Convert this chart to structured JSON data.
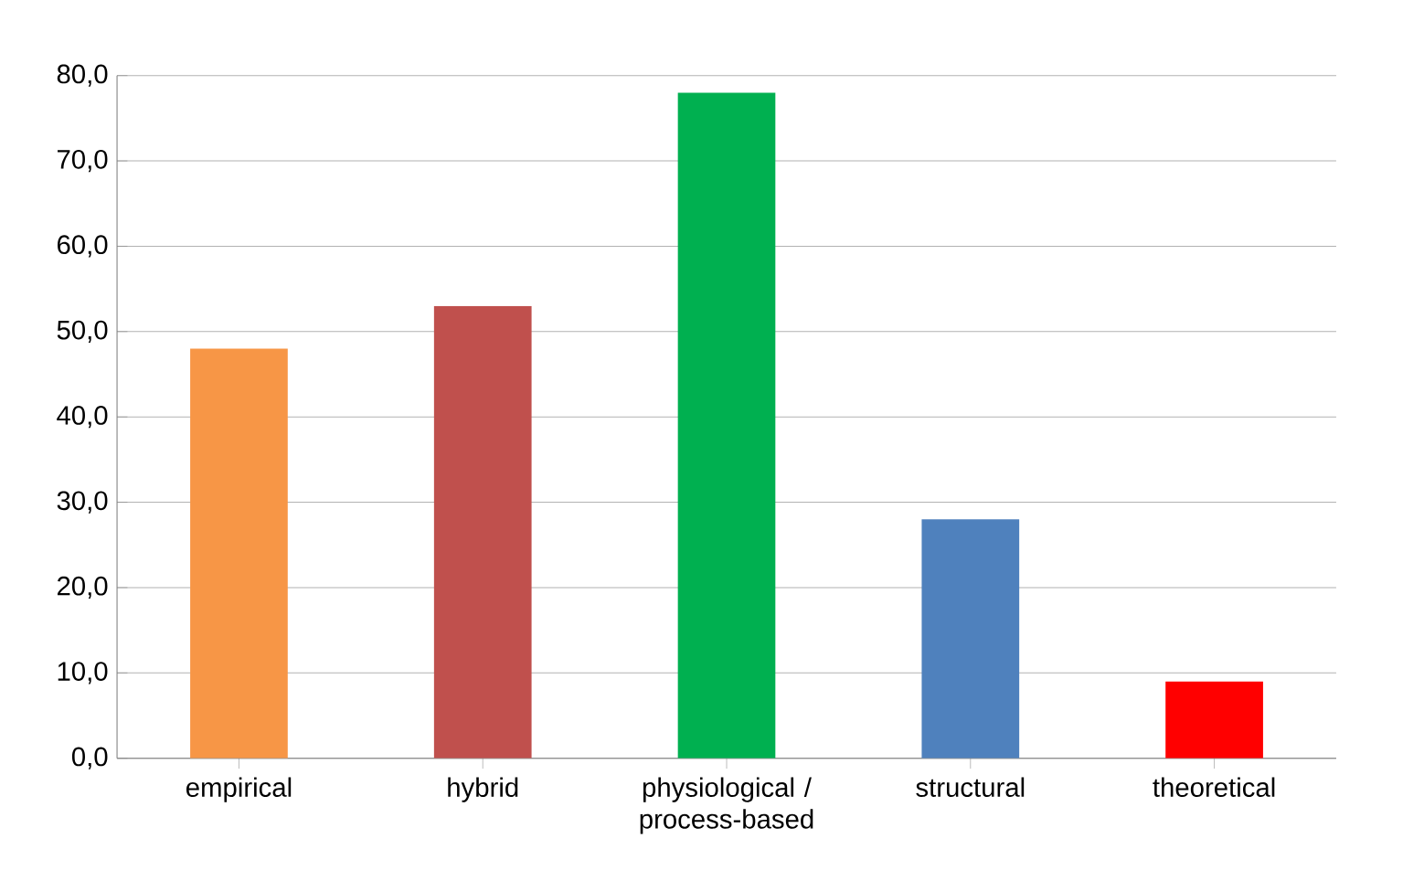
{
  "chart_data": {
    "type": "bar",
    "categories": [
      "empirical",
      "hybrid",
      "physiological / process-based",
      "structural",
      "theoretical"
    ],
    "values": [
      48,
      53,
      78,
      28,
      9
    ],
    "colors": [
      "#f79646",
      "#c0504d",
      "#00b050",
      "#4f81bd",
      "#ff0000"
    ],
    "ylim": [
      0,
      80
    ],
    "yticks": [
      {
        "value": 0,
        "label": "0,0"
      },
      {
        "value": 10,
        "label": "10,0"
      },
      {
        "value": 20,
        "label": "20,0"
      },
      {
        "value": 30,
        "label": "30,0"
      },
      {
        "value": 40,
        "label": "40,0"
      },
      {
        "value": 50,
        "label": "50,0"
      },
      {
        "value": 60,
        "label": "60,0"
      },
      {
        "value": 70,
        "label": "70,0"
      },
      {
        "value": 80,
        "label": "80,0"
      }
    ],
    "grid": "y"
  }
}
